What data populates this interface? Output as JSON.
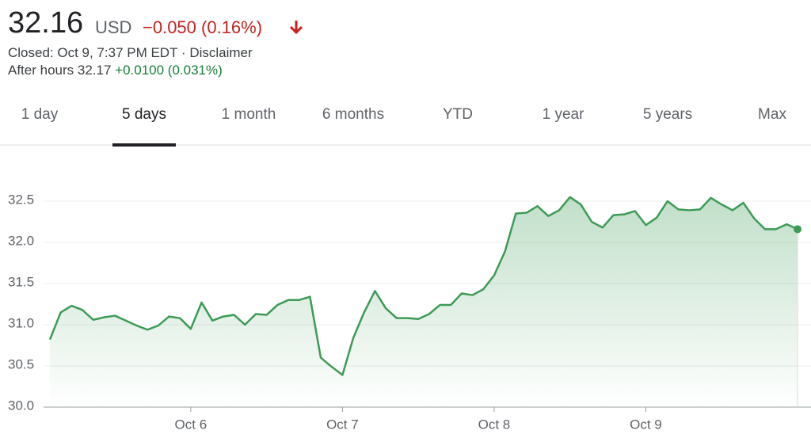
{
  "header": {
    "price": "32.16",
    "currency": "USD",
    "change": "−0.050 (0.16%)",
    "status": "Closed: Oct 9, 7:37 PM EDT",
    "separator": "·",
    "disclaimer": "Disclaimer",
    "after_hours": "After hours 32.17",
    "after_change": "+0.0100 (0.031%)"
  },
  "tabs": {
    "items": [
      "1 day",
      "5 days",
      "1 month",
      "6 months",
      "YTD",
      "1 year",
      "5 years",
      "Max"
    ],
    "selected": 1
  },
  "chart_data": {
    "type": "area",
    "color": "#3d9b56",
    "grid": true,
    "categories": [
      null,
      null,
      null,
      null,
      null,
      null,
      null,
      null,
      null,
      null,
      null,
      null,
      null,
      "Oct 6",
      null,
      null,
      null,
      null,
      null,
      null,
      null,
      null,
      null,
      null,
      null,
      null,
      null,
      "Oct 7",
      null,
      null,
      null,
      null,
      null,
      null,
      null,
      null,
      null,
      null,
      null,
      null,
      null,
      "Oct 8",
      null,
      null,
      null,
      null,
      null,
      null,
      null,
      null,
      null,
      null,
      null,
      null,
      null,
      "Oct 9",
      null,
      null,
      null,
      null,
      null,
      null,
      null,
      null,
      null,
      null,
      null,
      null,
      null,
      null
    ],
    "values": [
      30.82,
      31.15,
      31.23,
      31.18,
      31.06,
      31.09,
      31.11,
      31.05,
      30.99,
      30.94,
      30.99,
      31.1,
      31.08,
      30.95,
      31.27,
      31.05,
      31.1,
      31.12,
      31.0,
      31.13,
      31.12,
      31.24,
      31.3,
      31.3,
      31.34,
      30.6,
      30.49,
      30.39,
      30.84,
      31.15,
      31.41,
      31.2,
      31.08,
      31.08,
      31.07,
      31.13,
      31.24,
      31.24,
      31.38,
      31.36,
      31.43,
      31.6,
      31.89,
      32.35,
      32.36,
      32.44,
      32.32,
      32.39,
      32.55,
      32.46,
      32.25,
      32.18,
      32.33,
      32.34,
      32.38,
      32.21,
      32.3,
      32.5,
      32.4,
      32.39,
      32.4,
      32.54,
      32.46,
      32.39,
      32.48,
      32.29,
      32.16,
      32.16,
      32.22,
      32.16
    ],
    "ylim": [
      30,
      33
    ],
    "yticks": [
      {
        "value": 30,
        "label": "30.0"
      },
      30.5,
      {
        "value": 31,
        "label": "31.0"
      },
      31.5,
      {
        "value": 32,
        "label": "32.0"
      },
      32.5
    ]
  }
}
